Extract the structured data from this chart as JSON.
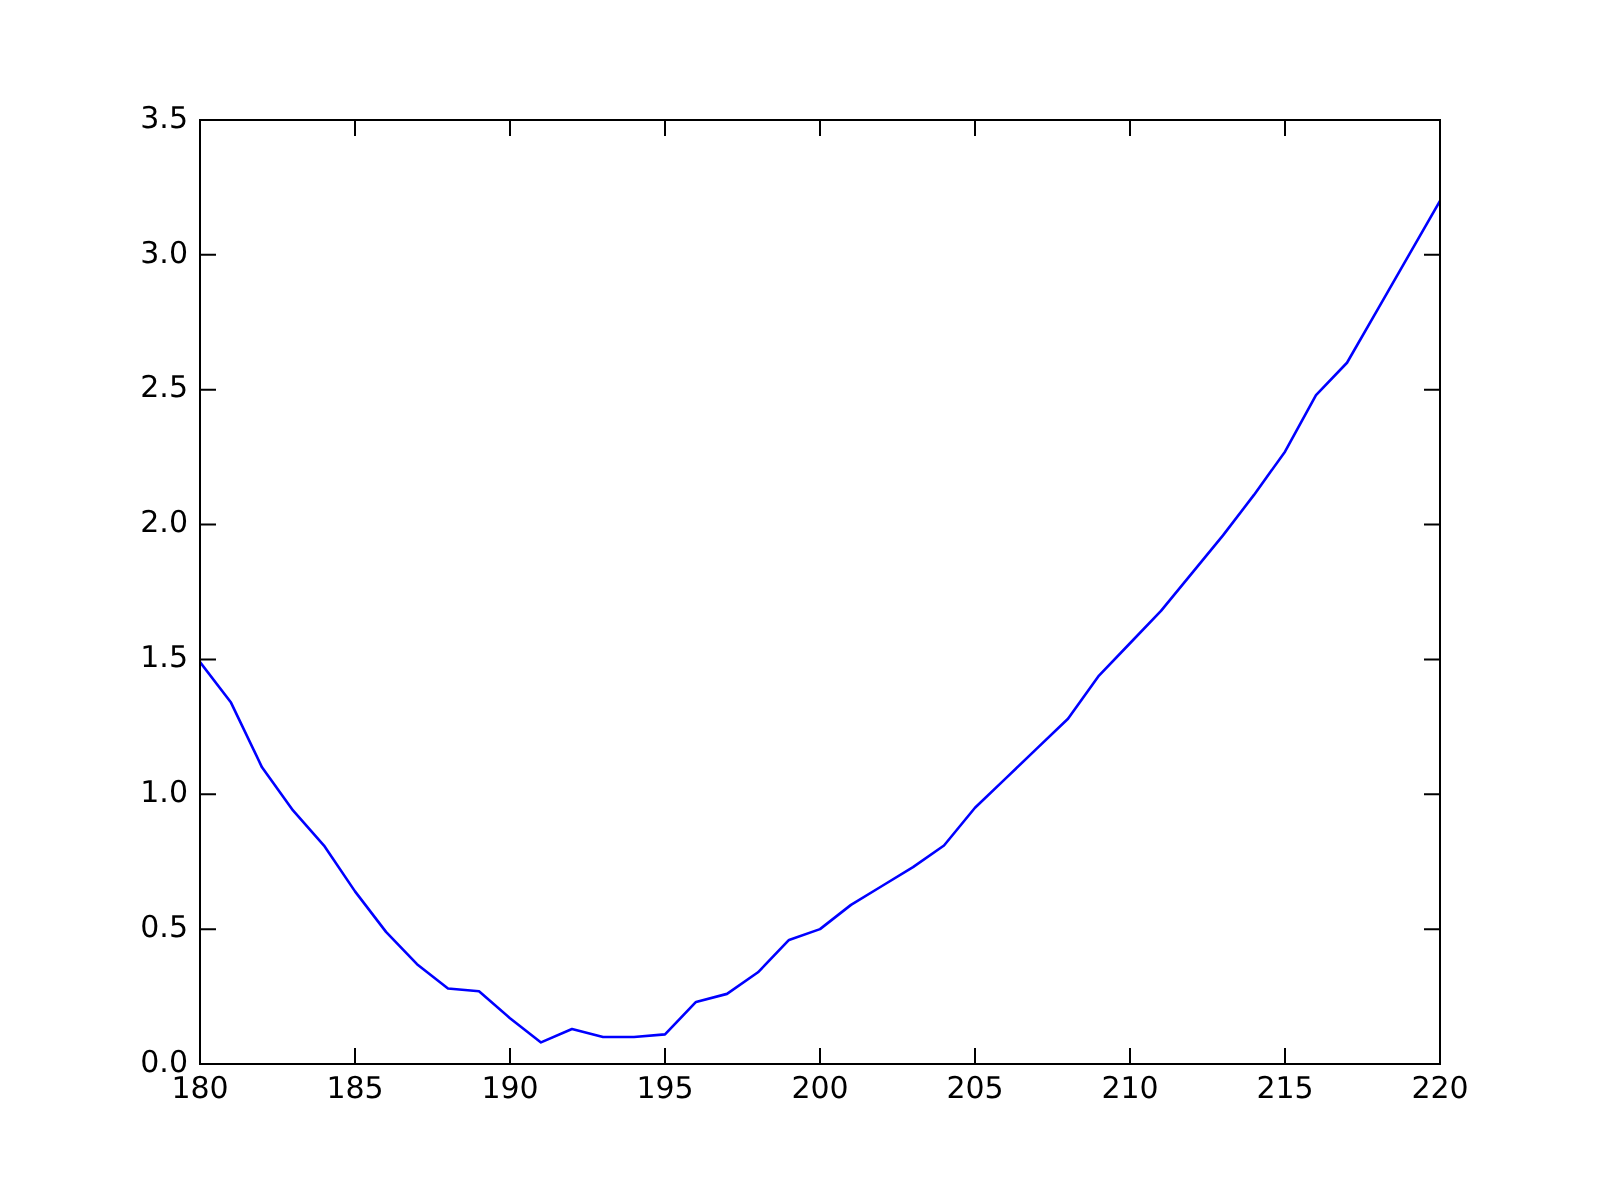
{
  "chart_data": {
    "type": "line",
    "x": [
      180,
      181,
      182,
      183,
      184,
      185,
      186,
      187,
      188,
      189,
      190,
      191,
      192,
      193,
      194,
      195,
      196,
      197,
      198,
      199,
      200,
      201,
      202,
      203,
      204,
      205,
      206,
      207,
      208,
      209,
      210,
      211,
      212,
      213,
      214,
      215,
      216,
      217,
      218,
      219,
      220
    ],
    "series": [
      {
        "color": "#0000ff",
        "values": [
          1.49,
          1.34,
          1.1,
          0.94,
          0.81,
          0.64,
          0.49,
          0.37,
          0.28,
          0.27,
          0.17,
          0.08,
          0.13,
          0.1,
          0.1,
          0.11,
          0.23,
          0.26,
          0.34,
          0.46,
          0.5,
          0.59,
          0.66,
          0.73,
          0.81,
          0.95,
          1.06,
          1.17,
          1.28,
          1.44,
          1.56,
          1.68,
          1.82,
          1.96,
          2.11,
          2.27,
          2.48,
          2.6,
          2.8,
          3.0,
          3.2
        ]
      }
    ],
    "xlim": [
      180,
      220
    ],
    "xticks": [
      180,
      185,
      190,
      195,
      200,
      205,
      210,
      215,
      220
    ],
    "ylim": [
      0,
      3.5
    ],
    "yticks": [
      {
        "value": 0,
        "label": "0.0"
      },
      {
        "value": 0.5,
        "label": "0.5"
      },
      {
        "value": 1,
        "label": "1.0"
      },
      {
        "value": 1.5,
        "label": "1.5"
      },
      {
        "value": 2,
        "label": "2.0"
      },
      {
        "value": 2.5,
        "label": "2.5"
      },
      {
        "value": 3,
        "label": "3.0"
      },
      {
        "value": 3.5,
        "label": "3.5"
      }
    ],
    "legend": false
  }
}
